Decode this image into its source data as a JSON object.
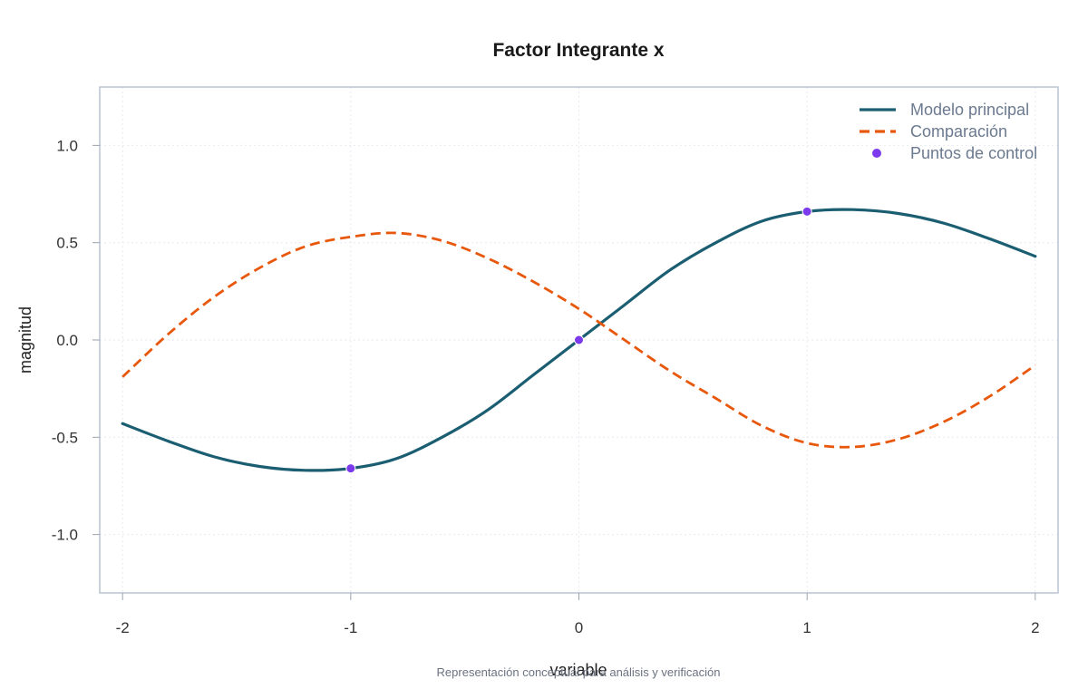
{
  "chart_data": {
    "type": "line",
    "title": "Factor Integrante x",
    "xlabel": "variable",
    "ylabel": "magnitud",
    "caption": "Representación conceptual para análisis y verificación",
    "xlim": [
      -2.1,
      2.1
    ],
    "ylim": [
      -1.3,
      1.3
    ],
    "x_ticks": [
      -2,
      -1,
      0,
      1,
      2
    ],
    "x_tick_labels": [
      "-2",
      "-1",
      "0",
      "1",
      "2"
    ],
    "y_ticks": [
      -1.0,
      -0.5,
      0.0,
      0.5,
      1.0
    ],
    "y_tick_labels": [
      "-1.0",
      "-0.5",
      "0.0",
      "0.5",
      "1.0"
    ],
    "grid": true,
    "legend_position": "top-right",
    "series": [
      {
        "name": "Modelo principal",
        "style": "solid",
        "color": "#1b5e72",
        "x": [
          -2.0,
          -1.8,
          -1.6,
          -1.4,
          -1.2,
          -1.0,
          -0.8,
          -0.6,
          -0.4,
          -0.2,
          0.0,
          0.2,
          0.4,
          0.6,
          0.8,
          1.0,
          1.2,
          1.4,
          1.6,
          1.8,
          2.0
        ],
        "y": [
          -0.43,
          -0.52,
          -0.6,
          -0.65,
          -0.67,
          -0.66,
          -0.61,
          -0.5,
          -0.36,
          -0.18,
          0.0,
          0.18,
          0.36,
          0.5,
          0.61,
          0.66,
          0.67,
          0.65,
          0.6,
          0.52,
          0.43
        ]
      },
      {
        "name": "Comparación",
        "style": "dashed",
        "color": "#e8580c",
        "x": [
          -2.0,
          -1.8,
          -1.6,
          -1.4,
          -1.2,
          -1.0,
          -0.8,
          -0.6,
          -0.4,
          -0.2,
          0.0,
          0.2,
          0.4,
          0.6,
          0.8,
          1.0,
          1.2,
          1.4,
          1.6,
          1.8,
          2.0
        ],
        "y": [
          -0.19,
          0.03,
          0.22,
          0.37,
          0.48,
          0.53,
          0.55,
          0.51,
          0.42,
          0.3,
          0.16,
          0.0,
          -0.16,
          -0.3,
          -0.44,
          -0.53,
          -0.55,
          -0.51,
          -0.42,
          -0.29,
          -0.13
        ]
      },
      {
        "name": "Puntos de control",
        "style": "points",
        "color": "#7c3aed",
        "x": [
          -1,
          0,
          1
        ],
        "y": [
          -0.66,
          0.0,
          0.66
        ]
      }
    ]
  }
}
